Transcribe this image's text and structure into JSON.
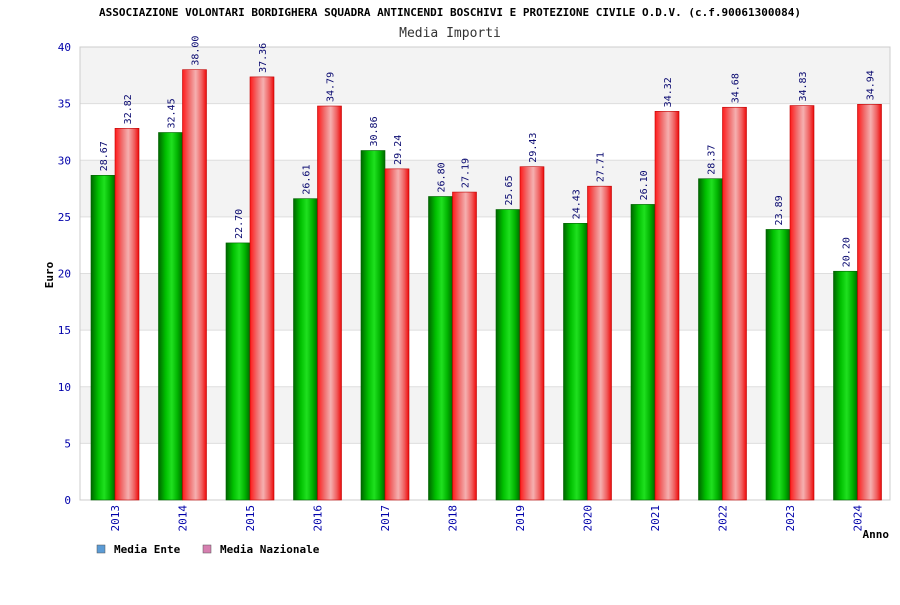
{
  "chart_data": {
    "type": "bar",
    "title": "ASSOCIAZIONE VOLONTARI BORDIGHERA SQUADRA ANTINCENDI BOSCHIVI E PROTEZIONE CIVILE O.D.V. (c.f.90061300084)",
    "subtitle": "Media Importi",
    "xlabel": "Anno",
    "ylabel": "Euro",
    "ylim": [
      0,
      40
    ],
    "yticks": [
      0,
      5,
      10,
      15,
      20,
      25,
      30,
      35,
      40
    ],
    "grid": true,
    "legend_position": "bottom-left",
    "categories": [
      "2013",
      "2014",
      "2015",
      "2016",
      "2017",
      "2018",
      "2019",
      "2020",
      "2021",
      "2022",
      "2023",
      "2024"
    ],
    "series": [
      {
        "name": "Media Ente",
        "color": "#00aa00",
        "legend_color": "#5b9bd5",
        "values": [
          28.67,
          32.45,
          22.7,
          26.61,
          30.86,
          26.8,
          25.65,
          24.43,
          26.1,
          28.37,
          23.89,
          20.2
        ],
        "labels": [
          "28.67",
          "32.45",
          "22.70",
          "26.61",
          "30.86",
          "26.80",
          "25.65",
          "24.43",
          "26.10",
          "28.37",
          "23.89",
          "20.20"
        ]
      },
      {
        "name": "Media Nazionale",
        "color": "#ee1111",
        "legend_color": "#d67fb0",
        "values": [
          32.82,
          38.0,
          37.36,
          34.79,
          29.24,
          27.19,
          29.43,
          27.71,
          34.32,
          34.68,
          34.83,
          34.94
        ],
        "labels": [
          "32.82",
          "38.00",
          "37.36",
          "34.79",
          "29.24",
          "27.19",
          "29.43",
          "27.71",
          "34.32",
          "34.68",
          "34.83",
          "34.94"
        ]
      }
    ]
  }
}
